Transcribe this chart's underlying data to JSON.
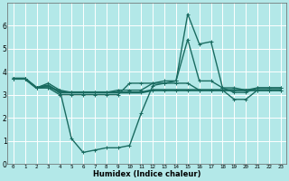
{
  "title": "",
  "xlabel": "Humidex (Indice chaleur)",
  "xlim": [
    -0.5,
    23.5
  ],
  "ylim": [
    0,
    7
  ],
  "background_color": "#b3e8e8",
  "plot_bg_color": "#b3e8e8",
  "grid_color": "#ffffff",
  "line_color": "#1a6b60",
  "xticks": [
    0,
    1,
    2,
    3,
    4,
    5,
    6,
    7,
    8,
    9,
    10,
    11,
    12,
    13,
    14,
    15,
    16,
    17,
    18,
    19,
    20,
    21,
    22,
    23
  ],
  "yticks": [
    0,
    1,
    2,
    3,
    4,
    5,
    6
  ],
  "lines": [
    {
      "x": [
        0,
        1,
        2,
        3,
        4,
        5,
        6,
        7,
        8,
        9,
        10,
        11,
        12,
        13,
        14,
        15,
        16,
        17,
        18,
        19,
        20,
        21,
        22,
        23
      ],
      "y": [
        3.7,
        3.7,
        3.3,
        3.3,
        3.2,
        1.1,
        0.5,
        0.6,
        0.7,
        0.7,
        0.8,
        2.2,
        3.4,
        3.5,
        3.6,
        6.5,
        5.2,
        5.3,
        3.3,
        3.3,
        3.2,
        3.3,
        3.3,
        3.3
      ],
      "lw": 1.0
    },
    {
      "x": [
        0,
        1,
        2,
        3,
        4,
        5,
        6,
        7,
        8,
        9,
        10,
        11,
        12,
        13,
        14,
        15,
        16,
        17,
        18,
        19,
        20,
        21,
        22,
        23
      ],
      "y": [
        3.7,
        3.7,
        3.3,
        3.4,
        3.1,
        3.1,
        3.1,
        3.1,
        3.1,
        3.1,
        3.1,
        3.1,
        3.2,
        3.2,
        3.2,
        3.2,
        3.2,
        3.2,
        3.2,
        3.2,
        3.2,
        3.2,
        3.2,
        3.2
      ],
      "lw": 1.8
    },
    {
      "x": [
        0,
        1,
        2,
        3,
        4,
        5,
        6,
        7,
        8,
        9,
        10,
        11,
        12,
        13,
        14,
        15,
        16,
        17,
        18,
        19,
        20,
        21,
        22,
        23
      ],
      "y": [
        3.7,
        3.7,
        3.3,
        3.3,
        3.0,
        3.0,
        3.0,
        3.0,
        3.0,
        3.0,
        3.5,
        3.5,
        3.5,
        3.5,
        3.5,
        3.5,
        3.2,
        3.2,
        3.2,
        2.8,
        2.8,
        3.2,
        3.2,
        3.2
      ],
      "lw": 1.0
    },
    {
      "x": [
        0,
        1,
        2,
        3,
        4,
        5,
        6,
        7,
        8,
        9,
        10,
        11,
        12,
        13,
        14,
        15,
        16,
        17,
        18,
        19,
        20,
        21,
        22,
        23
      ],
      "y": [
        3.7,
        3.7,
        3.3,
        3.5,
        3.2,
        3.1,
        3.1,
        3.1,
        3.1,
        3.2,
        3.2,
        3.2,
        3.5,
        3.6,
        3.6,
        5.4,
        3.6,
        3.6,
        3.3,
        3.1,
        3.1,
        3.3,
        3.3,
        3.3
      ],
      "lw": 1.0
    }
  ]
}
